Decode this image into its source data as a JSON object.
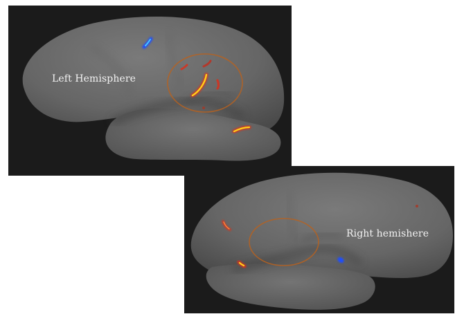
{
  "figure": {
    "left_panel": {
      "label": "Left Hemisphere",
      "background_color": "#1b1b1b",
      "surface_color": "#6a6a6a"
    },
    "right_panel": {
      "label": "Right hemishere",
      "background_color": "#1b1b1b",
      "surface_color": "#6a6a6a"
    },
    "colors": {
      "activation_hot": "#ffd21a",
      "activation_red": "#d8301c",
      "activation_blue": "#1f4dff",
      "activation_cyan": "#49c8ff",
      "roi_circle": "#b8621e"
    }
  }
}
